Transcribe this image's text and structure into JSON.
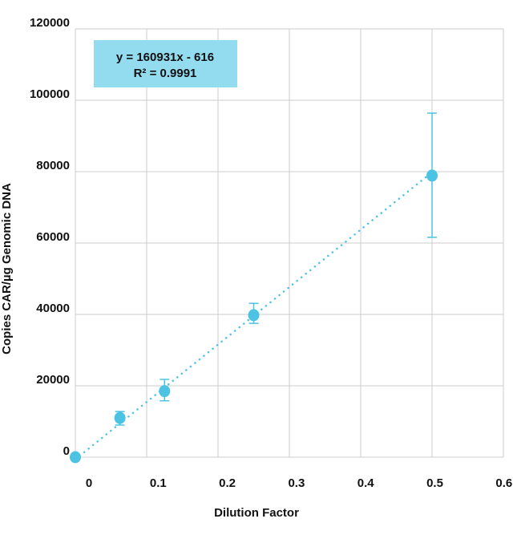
{
  "chart_data": {
    "type": "scatter",
    "title": "",
    "xlabel": "Dilution Factor",
    "ylabel": "Copies CAR/µg Genomic DNA",
    "xlim": [
      0,
      0.6
    ],
    "ylim": [
      0,
      120000
    ],
    "x_ticks": [
      "0",
      "0.1",
      "0.2",
      "0.3",
      "0.4",
      "0.5",
      "0.6"
    ],
    "y_ticks": [
      "0",
      "20000",
      "40000",
      "60000",
      "80000",
      "100000",
      "120000"
    ],
    "grid": true,
    "points": [
      {
        "x": 0,
        "y": 0,
        "err_low": 0,
        "err_high": 0
      },
      {
        "x": 0.0625,
        "y": 11000,
        "err_low": 9000,
        "err_high": 12800
      },
      {
        "x": 0.125,
        "y": 18500,
        "err_low": 15800,
        "err_high": 21800
      },
      {
        "x": 0.25,
        "y": 39800,
        "err_low": 37500,
        "err_high": 43100
      },
      {
        "x": 0.5,
        "y": 78900,
        "err_low": 61600,
        "err_high": 96400
      }
    ],
    "trendline": {
      "slope": 160931,
      "intercept": -616,
      "style": "dotted"
    },
    "annotation": {
      "equation": "y = 160931x - 616",
      "r2_label": "R² = 0.9991"
    },
    "colors": {
      "points": "#4dc3e3",
      "annotation_bg": "#93dcef",
      "grid": "#cccccc"
    }
  }
}
